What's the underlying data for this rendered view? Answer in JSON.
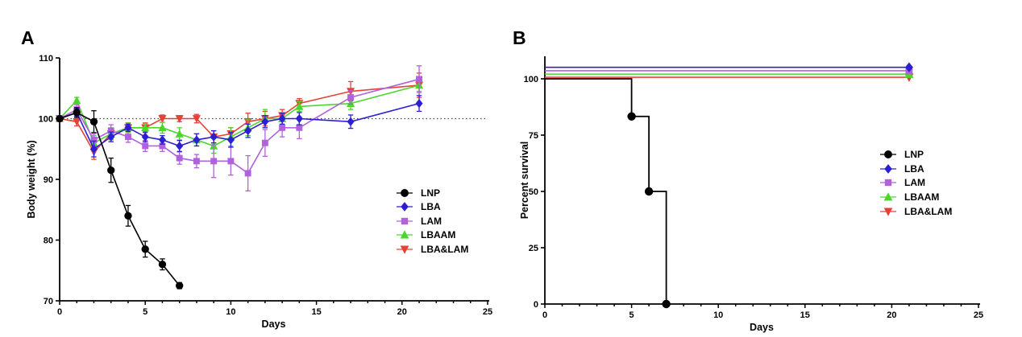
{
  "figure_background": "#ffffff",
  "chart_data": [
    {
      "panel_label": "A",
      "type": "line",
      "title": "",
      "xlabel": "Days",
      "ylabel": "Body weight (%)",
      "xlim": [
        0,
        25
      ],
      "ylim": [
        70,
        110
      ],
      "x_major_ticks": [
        0,
        5,
        10,
        15,
        20,
        25
      ],
      "x_minor_tick_step": 1,
      "y_ticks": [
        70,
        80,
        90,
        100,
        110
      ],
      "grid": false,
      "reference_line": {
        "y": 100,
        "style": "dotted",
        "color": "#444444"
      },
      "legend_position": "inside-right",
      "error_bars": true,
      "series": [
        {
          "name": "LNP",
          "color": "#000000",
          "marker": "circle",
          "x": [
            0,
            1,
            2,
            3,
            4,
            5,
            6,
            7
          ],
          "values": [
            100,
            101,
            99.5,
            91.5,
            84,
            78.5,
            76,
            72.5
          ],
          "err": [
            0.4,
            0.8,
            1.8,
            2.0,
            1.7,
            1.3,
            0.9,
            0.5
          ]
        },
        {
          "name": "LBA",
          "color": "#2c1ed2",
          "marker": "diamond",
          "x": [
            0,
            1,
            2,
            3,
            4,
            5,
            6,
            7,
            8,
            9,
            10,
            11,
            12,
            13,
            14,
            17,
            21
          ],
          "values": [
            100,
            101,
            95,
            97,
            98.5,
            97,
            96.5,
            95.5,
            96.5,
            97,
            96.5,
            98,
            99.5,
            100,
            100,
            99.5,
            102.5
          ],
          "err": [
            0.4,
            0.6,
            1.3,
            0.8,
            0.6,
            0.8,
            0.7,
            0.9,
            1.0,
            1.0,
            1.2,
            1.1,
            1.0,
            0.9,
            1.0,
            1.1,
            1.3
          ]
        },
        {
          "name": "LAM",
          "color": "#b062dc",
          "marker": "square",
          "x": [
            0,
            1,
            2,
            3,
            4,
            5,
            6,
            7,
            8,
            9,
            10,
            11,
            12,
            13,
            14,
            17,
            21
          ],
          "values": [
            100,
            101.5,
            96.5,
            98,
            97,
            95.5,
            95.5,
            93.5,
            93,
            93,
            93,
            91,
            96,
            98.5,
            98.5,
            103.5,
            106.5
          ],
          "err": [
            0.4,
            0.8,
            1.0,
            1.0,
            0.9,
            0.9,
            0.9,
            1.0,
            1.1,
            2.7,
            2.3,
            2.9,
            2.2,
            1.5,
            1.8,
            1.1,
            2.2
          ]
        },
        {
          "name": "LBAAM",
          "color": "#4cd62c",
          "marker": "triangle-up",
          "x": [
            0,
            1,
            2,
            3,
            4,
            5,
            6,
            7,
            8,
            9,
            10,
            11,
            12,
            13,
            14,
            17,
            21
          ],
          "values": [
            100,
            103,
            96,
            97.5,
            98.5,
            98.5,
            98.5,
            97.5,
            96.5,
            95.5,
            97,
            98.5,
            100,
            100,
            102,
            102.5,
            105.5
          ],
          "err": [
            0.4,
            0.5,
            1.2,
            1.0,
            0.8,
            0.7,
            0.9,
            1.0,
            1.0,
            1.2,
            1.5,
            1.3,
            1.5,
            1.0,
            0.8,
            1.0,
            1.0
          ]
        },
        {
          "name": "LBA&LAM",
          "color": "#e74136",
          "marker": "triangle-down",
          "x": [
            0,
            1,
            2,
            3,
            4,
            5,
            6,
            7,
            8,
            9,
            10,
            11,
            12,
            13,
            14,
            17,
            21
          ],
          "values": [
            100,
            99.5,
            94.5,
            97.5,
            98.5,
            98.5,
            100,
            100,
            100,
            97,
            97.5,
            99.5,
            100,
            100.5,
            102.5,
            104.5,
            105.5
          ],
          "err": [
            0.4,
            0.7,
            1.2,
            0.9,
            0.8,
            0.8,
            0.6,
            0.5,
            0.7,
            1.0,
            1.0,
            1.4,
            1.2,
            1.0,
            0.8,
            1.6,
            2.0
          ]
        }
      ]
    },
    {
      "panel_label": "B",
      "type": "step",
      "title": "",
      "xlabel": "Days",
      "ylabel": "Percent survival",
      "xlim": [
        0,
        25
      ],
      "ylim": [
        0,
        110
      ],
      "x_major_ticks": [
        0,
        5,
        10,
        15,
        20,
        25
      ],
      "x_minor_tick_step": 1,
      "y_ticks": [
        0,
        25,
        50,
        75,
        100
      ],
      "grid": false,
      "legend_position": "inside-right",
      "series": [
        {
          "name": "LNP",
          "color": "#000000",
          "marker": "circle",
          "steps": [
            [
              0,
              100
            ],
            [
              5,
              100
            ],
            [
              5,
              83.3
            ],
            [
              6,
              83.3
            ],
            [
              6,
              50
            ],
            [
              7,
              50
            ],
            [
              7,
              0
            ]
          ],
          "marker_points": [
            [
              5,
              83.3
            ],
            [
              6,
              50
            ],
            [
              7,
              0
            ]
          ]
        },
        {
          "name": "LBA",
          "color": "#2c1ed2",
          "marker": "diamond",
          "survival_percent": 100,
          "x_range": [
            0,
            21
          ],
          "display_y": 105.1
        },
        {
          "name": "LAM",
          "color": "#b062dc",
          "marker": "square",
          "survival_percent": 100,
          "x_range": [
            0,
            21
          ],
          "display_y": 103.6
        },
        {
          "name": "LBAAM",
          "color": "#4cd62c",
          "marker": "triangle-up",
          "survival_percent": 100,
          "x_range": [
            0,
            21
          ],
          "display_y": 102.1
        },
        {
          "name": "LBA&LAM",
          "color": "#e74136",
          "marker": "triangle-down",
          "survival_percent": 100,
          "x_range": [
            0,
            21
          ],
          "display_y": 100.7
        }
      ]
    }
  ]
}
